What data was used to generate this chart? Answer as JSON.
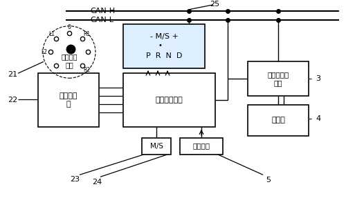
{
  "bg_color": "#ffffff",
  "line_color": "#000000",
  "box_fill": "#ffffff",
  "display_fill": "#ddeeff",
  "can_h_label": "CAN-H",
  "can_l_label": "CAN-L",
  "label_25": "25",
  "label_21": "21",
  "label_22": "22",
  "label_23": "23",
  "label_24": "24",
  "label_3": "3",
  "label_4": "4",
  "label_5": "5",
  "sensor_label": "传感器模\n块",
  "ecu_label": "电子控制单元",
  "gear_label": "换挡旋钮\n组件",
  "ms_label": "M/S",
  "brake_label": "刹车模块",
  "trans_ctrl_label": "变速器控制\n单元",
  "trans_label": "变速器",
  "disp_top": "- M/S +",
  "disp_dot": "•",
  "disp_bot": "P  R  N  D"
}
